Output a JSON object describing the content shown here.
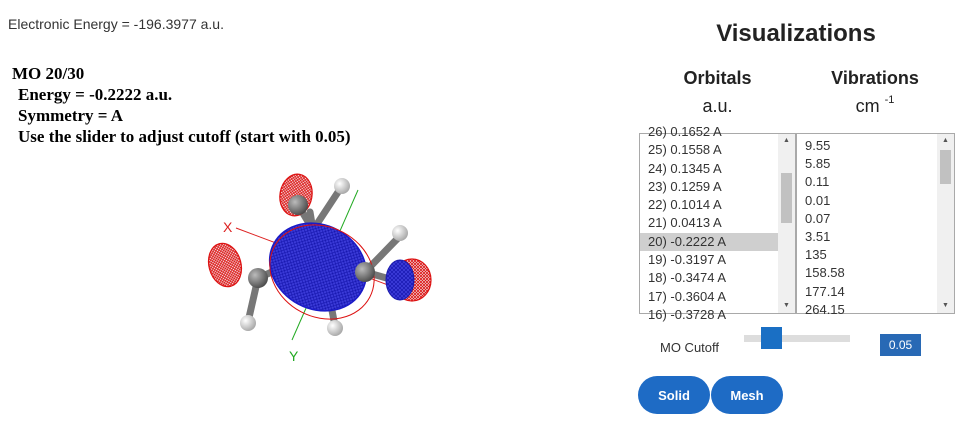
{
  "energy_text": "Electronic Energy = -196.3977 a.u.",
  "mo_info": {
    "title": "MO 20/30",
    "energy": "Energy = -0.2222 a.u.",
    "symmetry": "Symmetry = A",
    "instruction": "Use the slider to adjust cutoff (start with 0.05)"
  },
  "viewer": {
    "axis_x_label": "X",
    "axis_y_label": "Y",
    "colors": {
      "positive_lobe": "#2222dd",
      "negative_lobe": "#dd1111",
      "carbon": "#6e6e6e",
      "oxygen": "#cc2222",
      "hydrogen": "#e8e8e8",
      "x_axis": "#dd2222",
      "y_axis": "#22aa22"
    }
  },
  "visualizations": {
    "title": "Visualizations",
    "orbitals": {
      "heading": "Orbitals",
      "unit": "a.u.",
      "items": [
        "26) 0.1652 A",
        "25) 0.1558 A",
        "24) 0.1345 A",
        "23) 0.1259 A",
        "22) 0.1014 A",
        "21) 0.0413 A",
        "20) -0.2222 A",
        "19) -0.3197 A",
        "18) -0.3474 A",
        "17) -0.3604 A",
        "16) -0.3728 A"
      ],
      "selected_index": 6
    },
    "vibrations": {
      "heading": "Vibrations",
      "unit": "cm",
      "unit_exponent": "-1",
      "items": [
        "9.55",
        "5.85",
        "0.11",
        "0.01",
        "0.07",
        "3.51",
        "135",
        "158.58",
        "177.14",
        "264.15"
      ]
    }
  },
  "controls": {
    "cutoff_label": "MO Cutoff",
    "cutoff_value": "0.05",
    "solid_label": "Solid",
    "mesh_label": "Mesh"
  }
}
